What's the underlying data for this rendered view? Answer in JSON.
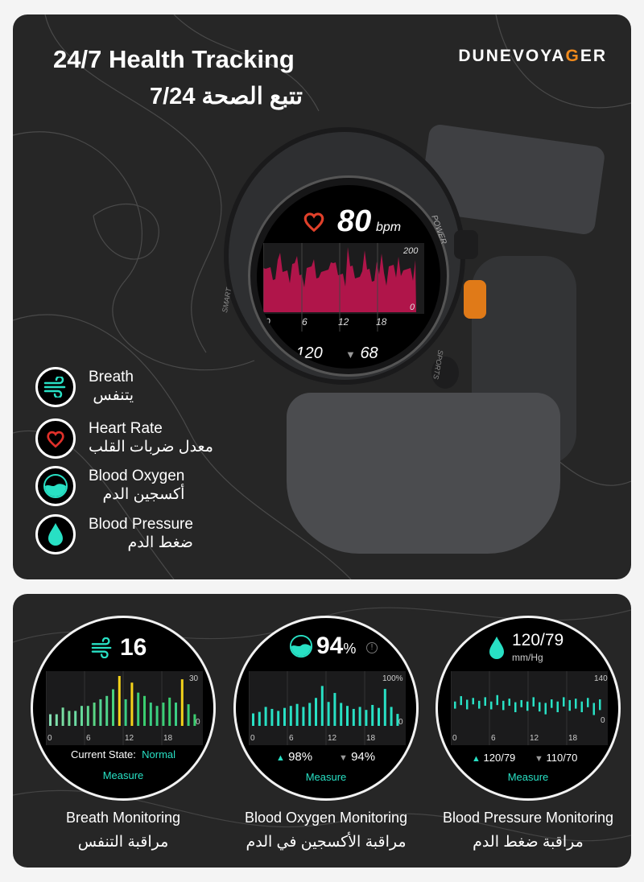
{
  "header": {
    "title": "24/7 Health Tracking",
    "title_ar": "تتبع الصحة 7/24",
    "brand": "DUNEVOYAGER",
    "brand_main": "DUNEVOYA",
    "brand_accent": "G",
    "brand_end": "ER"
  },
  "features": [
    {
      "icon": "breath-icon",
      "label": "Breath",
      "label_ar": "يتنفس"
    },
    {
      "icon": "heart-icon",
      "label": "Heart Rate",
      "label_ar": "معدل ضربات القلب"
    },
    {
      "icon": "blood-oxygen-icon",
      "label": "Blood Oxygen",
      "label_ar": "أكسجين الدم"
    },
    {
      "icon": "blood-drop-icon",
      "label": "Blood Pressure",
      "label_ar": "ضغط الدم"
    }
  ],
  "main_watch": {
    "heart_rate": "80",
    "unit": "bpm",
    "y_max": "200",
    "y_min": "0",
    "x_ticks": [
      "0",
      "6",
      "12",
      "18"
    ],
    "high": "120",
    "low": "68",
    "bezel_labels": [
      "POWER",
      "SMART",
      "SPORTS"
    ],
    "chart_color": "#b0154a"
  },
  "mini_watches": [
    {
      "icon": "breath-icon",
      "value": "16",
      "y_max": "30",
      "y_min": "0",
      "x_ticks": [
        "0",
        "6",
        "12",
        "18"
      ],
      "state_label": "Current State:",
      "state_value": "Normal",
      "action": "Measure",
      "caption": "Breath Monitoring",
      "caption_ar": "مراقبة التنفس",
      "bars": [
        7,
        7,
        11,
        9,
        9,
        12,
        12,
        14,
        16,
        18,
        22,
        30,
        16,
        26,
        20,
        18,
        14,
        12,
        14,
        17,
        14,
        28,
        13,
        7
      ],
      "highlight": [
        11,
        13,
        21
      ]
    },
    {
      "icon": "blood-oxygen-icon",
      "value": "94",
      "value_unit": "%",
      "y_max": "100%",
      "y_min": "0",
      "x_ticks": [
        "0",
        "6",
        "12",
        "18"
      ],
      "high": "98%",
      "low": "94%",
      "action": "Measure",
      "caption": "Blood Oxygen Monitoring",
      "caption_ar": "مراقبة الأكسجين في الدم",
      "bars": [
        25,
        28,
        38,
        34,
        30,
        36,
        40,
        44,
        38,
        46,
        56,
        80,
        48,
        66,
        46,
        40,
        34,
        38,
        32,
        42,
        36,
        74,
        38,
        24
      ]
    },
    {
      "icon": "blood-drop-icon",
      "value": "120/79",
      "value_unit": "mm/Hg",
      "y_max": "140",
      "y_min": "0",
      "x_ticks": [
        "0",
        "6",
        "12",
        "18"
      ],
      "high": "120/79",
      "low": "110/70",
      "action": "Measure",
      "caption": "Blood Pressure Monitoring",
      "caption_ar": "مراقبة ضغط الدم",
      "ranges": [
        [
          80,
          100
        ],
        [
          90,
          115
        ],
        [
          78,
          105
        ],
        [
          92,
          110
        ],
        [
          80,
          102
        ],
        [
          88,
          112
        ],
        [
          78,
          100
        ],
        [
          90,
          118
        ],
        [
          76,
          102
        ],
        [
          88,
          108
        ],
        [
          70,
          98
        ],
        [
          84,
          104
        ],
        [
          74,
          100
        ],
        [
          86,
          112
        ],
        [
          72,
          98
        ],
        [
          64,
          96
        ],
        [
          82,
          106
        ],
        [
          70,
          100
        ],
        [
          86,
          112
        ],
        [
          74,
          104
        ],
        [
          80,
          108
        ],
        [
          70,
          100
        ],
        [
          84,
          110
        ],
        [
          62,
          96
        ],
        [
          76,
          106
        ]
      ]
    }
  ],
  "colors": {
    "teal": "#28e0c4",
    "accent": "#f08a1c",
    "yellow": "#f4d21a",
    "heart": "#e0302a"
  }
}
